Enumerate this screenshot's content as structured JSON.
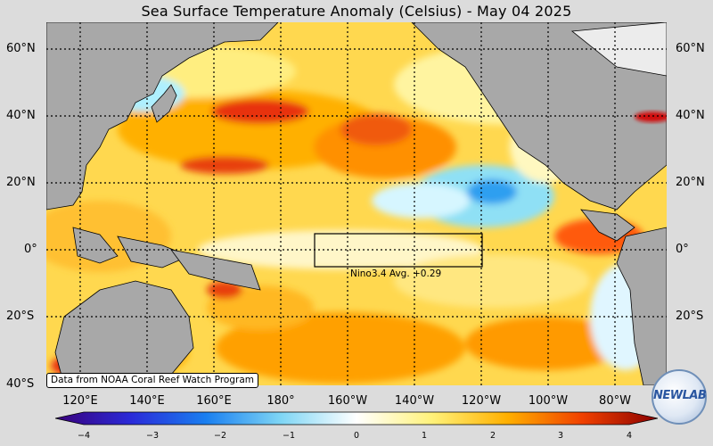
{
  "title": "Sea Surface Temperature Anomaly (Celsius) - May 04 2025",
  "lat_labels": [
    "60°N",
    "40°N",
    "20°N",
    "0°",
    "20°S",
    "40°S"
  ],
  "lon_labels": [
    "120°E",
    "140°E",
    "160°E",
    "180°",
    "160°W",
    "140°W",
    "120°W",
    "100°W",
    "80°W"
  ],
  "nino_box": {
    "label": "Nino3.4 Avg. +0.29",
    "region": "Nino3.4",
    "avg_anomaly": 0.29
  },
  "credit": "Data from NOAA Coral Reef Watch Program",
  "colorbar": {
    "ticks": [
      "−4",
      "−3",
      "−2",
      "−1",
      "0",
      "1",
      "2",
      "3",
      "4"
    ],
    "min": -4,
    "max": 4,
    "colors": [
      "#3a007a",
      "#2a2ad8",
      "#1a7ff0",
      "#7fd6f5",
      "#ffffff",
      "#fff27a",
      "#ffb000",
      "#f04000",
      "#8a0000"
    ]
  },
  "logo": {
    "text": "NEWLAB"
  },
  "colors": {
    "land": "#a8a8a8",
    "background": "#dcdcdc",
    "warm": "#ffd24a",
    "hot": "#e03010",
    "cool": "#bfefff"
  }
}
